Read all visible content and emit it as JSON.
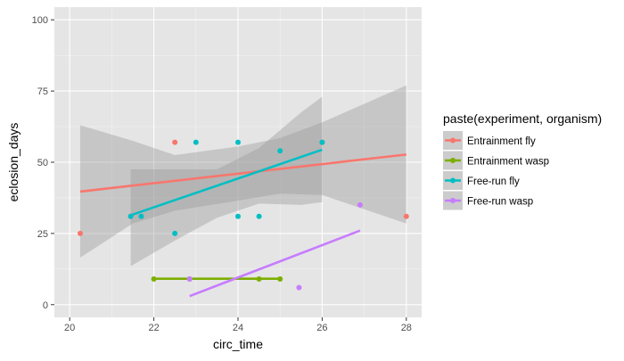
{
  "chart_data": {
    "type": "scatter",
    "title": "",
    "xlabel": "circ_time",
    "ylabel": "eclosion_days",
    "xlim": [
      20,
      28
    ],
    "ylim": [
      0,
      100
    ],
    "xticks": [
      20,
      22,
      24,
      26,
      28
    ],
    "yticks": [
      0,
      25,
      50,
      75,
      100
    ],
    "grid": true,
    "background": "#e5e5e5",
    "legend": {
      "title": "paste(experiment, organism)",
      "placement": "right"
    },
    "series": [
      {
        "name": "Entrainment fly",
        "color": "#f8766d",
        "points": [
          [
            20.25,
            25
          ],
          [
            21.45,
            31
          ],
          [
            22.5,
            57
          ],
          [
            26.0,
            57
          ],
          [
            28.0,
            31
          ]
        ],
        "fit": {
          "x": [
            20.25,
            28.0
          ],
          "y": [
            39.7,
            52.7
          ]
        },
        "ci": {
          "x": [
            20.25,
            21.5,
            22.5,
            24.0,
            25.0,
            26.0,
            28.0
          ],
          "lower": [
            16.5,
            28.5,
            33.0,
            36.5,
            39.0,
            38.5,
            28.5
          ],
          "upper": [
            63.0,
            57.5,
            52.5,
            55.5,
            58.5,
            64.0,
            77.0
          ]
        }
      },
      {
        "name": "Entrainment wasp",
        "color": "#7cae00",
        "points": [
          [
            22.0,
            9
          ],
          [
            22.85,
            9
          ],
          [
            24.5,
            9
          ],
          [
            25.0,
            9
          ]
        ],
        "fit": {
          "x": [
            22.0,
            25.0
          ],
          "y": [
            9.1,
            9.1
          ]
        }
      },
      {
        "name": "Free-run fly",
        "color": "#00bfc4",
        "points": [
          [
            21.45,
            31
          ],
          [
            21.7,
            31
          ],
          [
            22.5,
            25
          ],
          [
            23.0,
            57
          ],
          [
            24.0,
            57
          ],
          [
            24.0,
            31
          ],
          [
            24.5,
            31
          ],
          [
            25.0,
            54
          ],
          [
            26.0,
            57
          ]
        ],
        "fit": {
          "x": [
            21.45,
            26.0
          ],
          "y": [
            31.4,
            54.4
          ]
        },
        "ci": {
          "x": [
            21.45,
            22.5,
            23.5,
            24.5,
            25.5,
            26.0
          ],
          "lower": [
            13.5,
            22.5,
            30.5,
            35.5,
            35.0,
            36.0
          ],
          "upper": [
            47.5,
            47.5,
            47.5,
            55.0,
            67.5,
            73.0
          ]
        }
      },
      {
        "name": "Free-run wasp",
        "color": "#c77cff",
        "points": [
          [
            22.85,
            9
          ],
          [
            25.45,
            6
          ],
          [
            26.9,
            35
          ]
        ],
        "fit": {
          "x": [
            22.85,
            26.9
          ],
          "y": [
            3.0,
            26.0
          ]
        }
      }
    ]
  }
}
